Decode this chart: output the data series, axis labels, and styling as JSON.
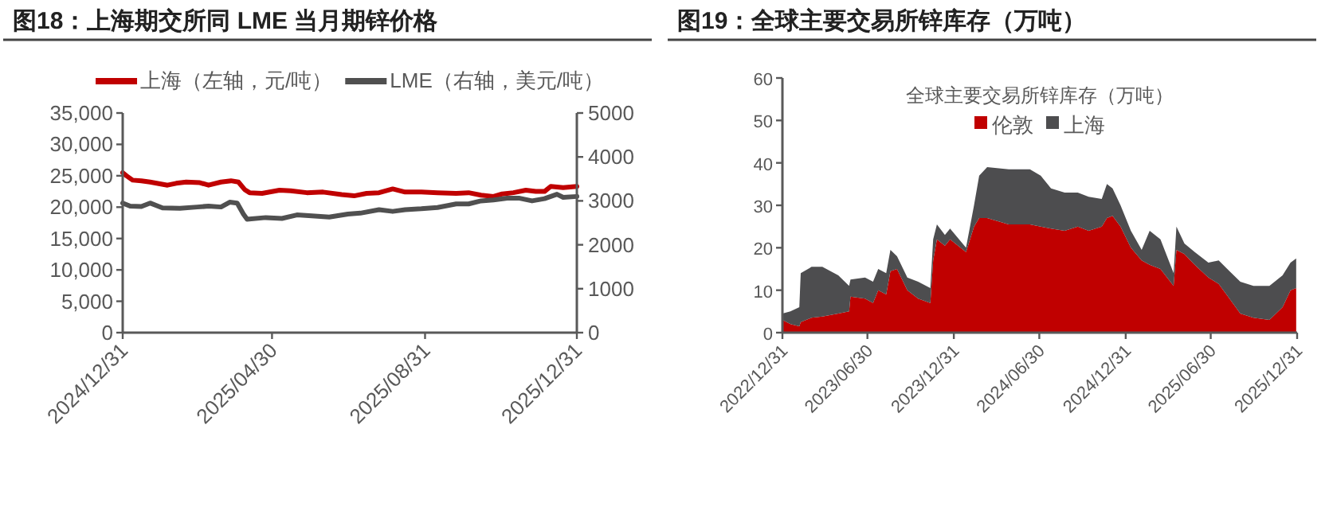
{
  "chart_data": [
    {
      "type": "line",
      "title": "图18：上海期交所同 LME 当月期锌价格",
      "legend": "top",
      "xlim": [
        "2024-12-31",
        "2025-12-31"
      ],
      "xticks": [
        {
          "value": "2024-12-31",
          "label": "2024/12/31"
        },
        {
          "value": "2025-04-30",
          "label": "2025/04/30"
        },
        {
          "value": "2025-08-31",
          "label": "2025/08/31"
        },
        {
          "value": "2025-12-31",
          "label": "2025/12/31"
        }
      ],
      "ylim": [
        0,
        35000
      ],
      "yticks": [
        {
          "value": 0,
          "label": "0"
        },
        {
          "value": 5000,
          "label": "5,000"
        },
        {
          "value": 10000,
          "label": "10,000"
        },
        {
          "value": 15000,
          "label": "15,000"
        },
        {
          "value": 20000,
          "label": "20,000"
        },
        {
          "value": 25000,
          "label": "25,000"
        },
        {
          "value": 30000,
          "label": "30,000"
        },
        {
          "value": 35000,
          "label": "35,000"
        }
      ],
      "y2lim": [
        0,
        5000
      ],
      "y2ticks": [
        0,
        1000,
        2000,
        3000,
        4000,
        5000
      ],
      "series": [
        {
          "name": "上海（左轴，元/吨）",
          "color": "#c00000",
          "x": [
            "2024-12-31",
            "2025-01-03",
            "2025-01-08",
            "2025-01-15",
            "2025-01-22",
            "2025-02-05",
            "2025-02-12",
            "2025-02-20",
            "2025-03-03",
            "2025-03-10",
            "2025-03-20",
            "2025-03-28",
            "2025-04-03",
            "2025-04-08",
            "2025-04-12",
            "2025-04-22",
            "2025-05-06",
            "2025-05-15",
            "2025-05-28",
            "2025-06-10",
            "2025-06-25",
            "2025-07-05",
            "2025-07-15",
            "2025-07-25",
            "2025-08-05",
            "2025-08-15",
            "2025-08-28",
            "2025-09-10",
            "2025-09-25",
            "2025-10-05",
            "2025-10-15",
            "2025-10-25",
            "2025-11-01",
            "2025-11-10",
            "2025-11-20",
            "2025-11-28",
            "2025-12-05",
            "2025-12-10",
            "2025-12-20",
            "2025-12-31"
          ],
          "values": [
            25500,
            25000,
            24300,
            24200,
            24000,
            23500,
            23800,
            24000,
            23900,
            23500,
            24000,
            24200,
            24000,
            22800,
            22300,
            22200,
            22700,
            22600,
            22300,
            22400,
            22000,
            21800,
            22200,
            22300,
            22900,
            22400,
            22400,
            22300,
            22200,
            22300,
            21900,
            21700,
            22100,
            22300,
            22700,
            22500,
            22500,
            23300,
            23100,
            23300
          ]
        },
        {
          "name": "LME（右轴，美元/吨）",
          "color": "#505050",
          "axis": "y2",
          "x": [
            "2024-12-31",
            "2025-01-06",
            "2025-01-15",
            "2025-01-22",
            "2025-02-01",
            "2025-02-15",
            "2025-03-01",
            "2025-03-10",
            "2025-03-20",
            "2025-03-27",
            "2025-04-02",
            "2025-04-07",
            "2025-04-10",
            "2025-04-25",
            "2025-05-08",
            "2025-05-20",
            "2025-06-01",
            "2025-06-15",
            "2025-06-30",
            "2025-07-10",
            "2025-07-25",
            "2025-08-05",
            "2025-08-15",
            "2025-08-28",
            "2025-09-10",
            "2025-09-25",
            "2025-10-05",
            "2025-10-15",
            "2025-10-25",
            "2025-11-05",
            "2025-11-15",
            "2025-11-25",
            "2025-12-05",
            "2025-12-15",
            "2025-12-20",
            "2025-12-31"
          ],
          "values": [
            2950,
            2880,
            2870,
            2950,
            2840,
            2830,
            2860,
            2880,
            2860,
            2970,
            2950,
            2700,
            2580,
            2620,
            2600,
            2680,
            2660,
            2630,
            2700,
            2720,
            2800,
            2760,
            2800,
            2820,
            2850,
            2930,
            2930,
            3000,
            3020,
            3060,
            3060,
            3000,
            3050,
            3150,
            3080,
            3100
          ]
        }
      ]
    },
    {
      "type": "area",
      "stacked": true,
      "title": "图19：全球主要交易所锌库存（万吨）",
      "subtitle": "全球主要交易所锌库存（万吨）",
      "legend": "top",
      "xlim": [
        "2022-12-31",
        "2025-12-31"
      ],
      "xticks": [
        {
          "value": "2022-12-31",
          "label": "2022/12/31"
        },
        {
          "value": "2023-06-30",
          "label": "2023/06/30"
        },
        {
          "value": "2023-12-31",
          "label": "2023/12/31"
        },
        {
          "value": "2024-06-30",
          "label": "2024/06/30"
        },
        {
          "value": "2024-12-31",
          "label": "2024/12/31"
        },
        {
          "value": "2025-06-30",
          "label": "2025/06/30"
        },
        {
          "value": "2025-12-31",
          "label": "2025/12/31"
        }
      ],
      "ylim": [
        0,
        60
      ],
      "yticks": [
        0,
        10,
        20,
        30,
        40,
        50,
        60
      ],
      "x": [
        "2022-12-31",
        "2023-01-17",
        "2023-02-05",
        "2023-02-08",
        "2023-03-03",
        "2023-03-26",
        "2023-04-29",
        "2023-05-22",
        "2023-05-25",
        "2023-06-25",
        "2023-07-12",
        "2023-07-23",
        "2023-08-09",
        "2023-08-18",
        "2023-09-01",
        "2023-09-23",
        "2023-10-16",
        "2023-11-11",
        "2023-11-17",
        "2023-11-25",
        "2023-12-12",
        "2023-12-23",
        "2024-01-26",
        "2024-02-12",
        "2024-02-23",
        "2024-03-11",
        "2024-04-26",
        "2024-06-10",
        "2024-07-03",
        "2024-07-25",
        "2024-08-23",
        "2024-09-20",
        "2024-10-13",
        "2024-11-10",
        "2024-11-21",
        "2024-12-03",
        "2024-12-20",
        "2025-01-11",
        "2025-02-03",
        "2025-02-20",
        "2025-03-15",
        "2025-04-12",
        "2025-04-18",
        "2025-05-05",
        "2025-05-27",
        "2025-06-25",
        "2025-07-17",
        "2025-08-09",
        "2025-09-01",
        "2025-09-29",
        "2025-11-02",
        "2025-11-30",
        "2025-12-17",
        "2025-12-29"
      ],
      "series": [
        {
          "name": "伦敦",
          "color": "#c00000",
          "values": [
            3,
            2,
            1.5,
            2.5,
            3.5,
            3.8,
            4.5,
            5,
            8.5,
            8,
            7,
            10,
            9,
            14.5,
            15,
            10,
            8,
            7,
            17,
            22,
            20.5,
            22,
            19,
            25,
            27,
            27,
            25.5,
            25.5,
            25,
            24.5,
            24,
            25,
            24,
            25,
            27,
            27.5,
            25,
            20,
            17,
            16,
            15,
            11,
            19.5,
            18.5,
            16,
            13,
            11.5,
            8,
            4.5,
            3.5,
            3,
            6,
            10,
            10.5
          ]
        },
        {
          "name": "上海",
          "color": "#4d4d4f",
          "values": [
            1.5,
            3,
            4.5,
            11.5,
            12,
            11.7,
            9,
            6,
            4,
            5,
            5,
            5,
            5,
            5,
            3,
            3,
            4,
            3.5,
            5,
            3.5,
            2.5,
            2.5,
            1,
            5,
            10,
            12,
            13,
            13,
            12,
            9.5,
            9,
            8,
            8,
            6.5,
            8,
            6.5,
            5,
            4,
            2.5,
            8,
            7,
            3,
            5.5,
            2.5,
            3,
            3.5,
            5.5,
            6.5,
            7.5,
            7.5,
            8,
            7.5,
            6.5,
            7
          ]
        }
      ]
    }
  ]
}
